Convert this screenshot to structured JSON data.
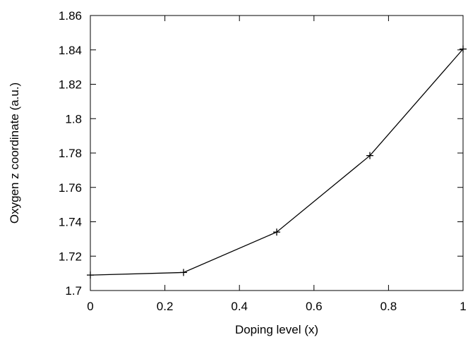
{
  "chart_data": {
    "type": "line",
    "title": "",
    "xlabel": "Doping level (x)",
    "ylabel": "Oxygen z coordinate (a.u.)",
    "xlim": [
      0,
      1
    ],
    "ylim": [
      1.7,
      1.86
    ],
    "xticks": [
      0,
      0.2,
      0.4,
      0.6,
      0.8,
      1
    ],
    "xtick_labels": [
      "0",
      "0.2",
      "0.4",
      "0.6",
      "0.8",
      "1"
    ],
    "yticks": [
      1.7,
      1.72,
      1.74,
      1.76,
      1.78,
      1.8,
      1.82,
      1.84,
      1.86
    ],
    "ytick_labels": [
      "1.7",
      "1.72",
      "1.74",
      "1.76",
      "1.78",
      "1.8",
      "1.82",
      "1.84",
      "1.86"
    ],
    "grid": false,
    "legend": "none",
    "marker": "plus",
    "line_color": "#000000",
    "series": [
      {
        "x": [
          0,
          0.25,
          0.5,
          0.75,
          1
        ],
        "y": [
          1.709,
          1.7105,
          1.734,
          1.7785,
          1.8405
        ]
      }
    ]
  }
}
